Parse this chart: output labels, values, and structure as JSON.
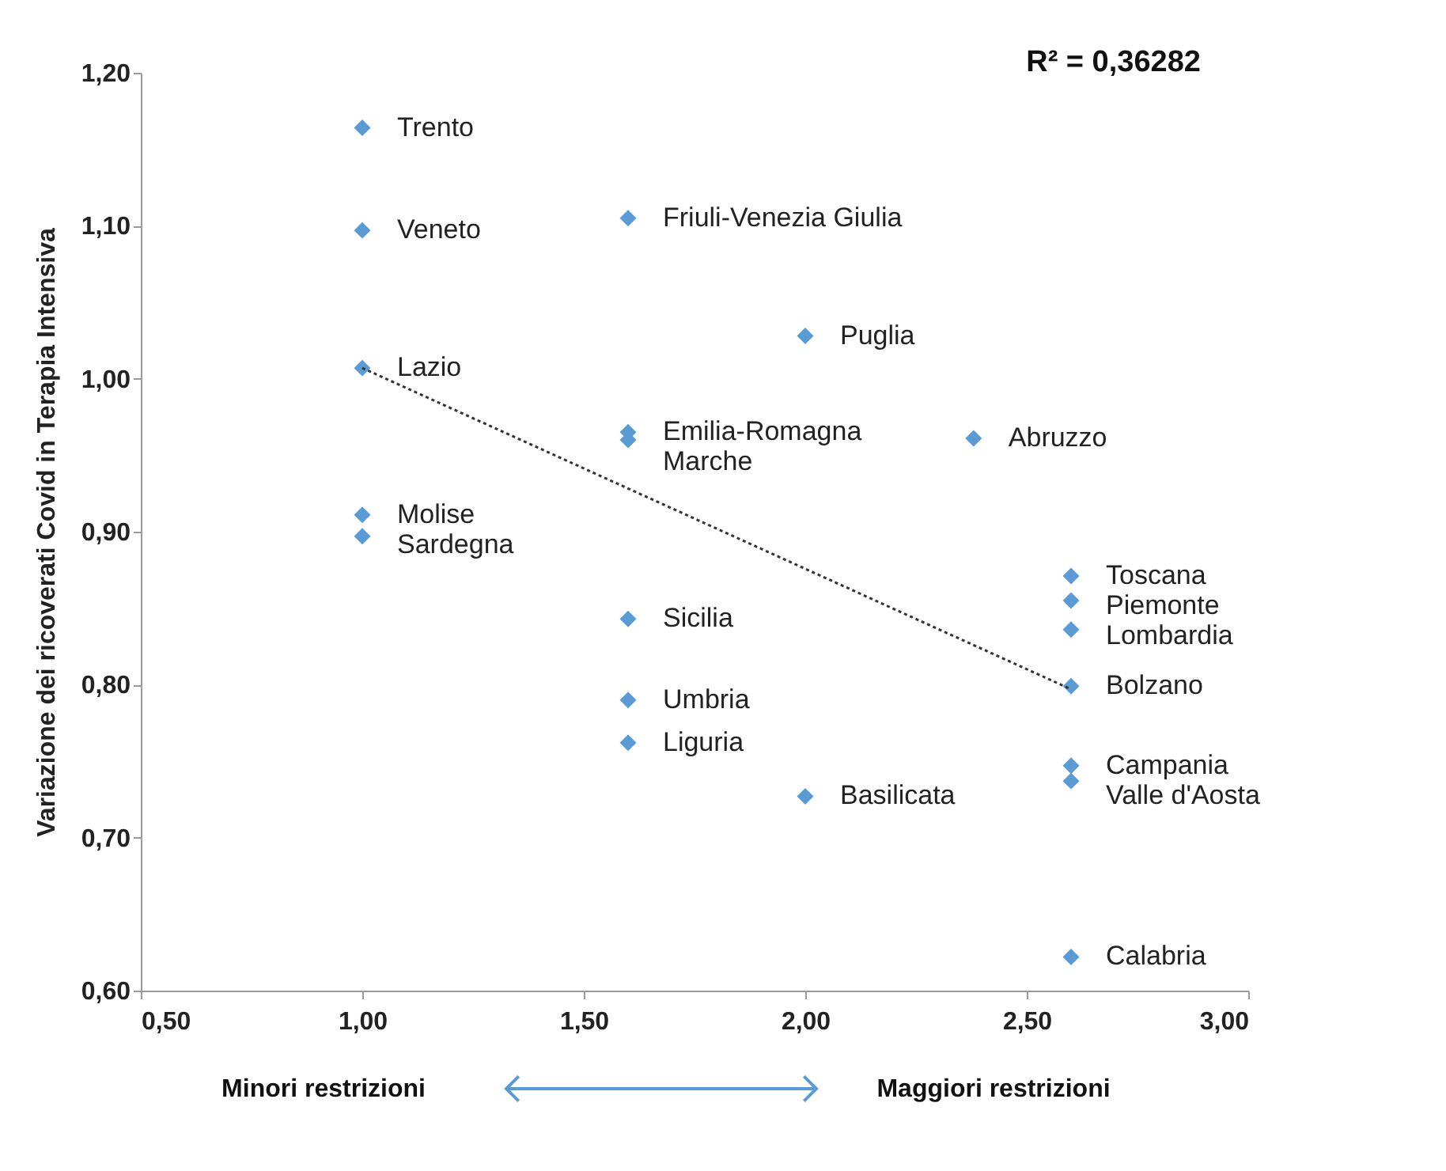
{
  "chart_data": {
    "type": "scatter",
    "ylabel": "Variazione dei ricoverati Covid in Terapia Intensiva",
    "xlim": [
      0.5,
      3.0
    ],
    "ylim": [
      0.6,
      1.2
    ],
    "xticks": [
      {
        "value": 0.5,
        "label": "0,50"
      },
      {
        "value": 1.0,
        "label": "1,00"
      },
      {
        "value": 1.5,
        "label": "1,50"
      },
      {
        "value": 2.0,
        "label": "2,00"
      },
      {
        "value": 2.5,
        "label": "2,50"
      },
      {
        "value": 3.0,
        "label": "3,00"
      }
    ],
    "yticks": [
      {
        "value": 0.6,
        "label": "0,60"
      },
      {
        "value": 0.7,
        "label": "0,70"
      },
      {
        "value": 0.8,
        "label": "0,80"
      },
      {
        "value": 0.9,
        "label": "0,90"
      },
      {
        "value": 1.0,
        "label": "1,00"
      },
      {
        "value": 1.1,
        "label": "1,10"
      },
      {
        "value": 1.2,
        "label": "1,20"
      }
    ],
    "grid": false,
    "series": [
      {
        "marker": "diamond",
        "color": "#5b9bd5",
        "x": [
          1.0,
          1.0,
          1.0,
          1.0,
          1.0,
          1.6,
          1.6,
          1.6,
          1.6,
          1.6,
          1.6,
          2.0,
          2.0,
          2.38,
          2.6,
          2.6,
          2.6,
          2.6,
          2.6,
          2.6,
          2.6
        ],
        "values": [
          1.164,
          1.097,
          1.007,
          0.911,
          0.897,
          1.105,
          0.965,
          0.96,
          0.843,
          0.79,
          0.762,
          1.028,
          0.727,
          0.961,
          0.871,
          0.855,
          0.836,
          0.799,
          0.747,
          0.737,
          0.622
        ]
      },
      {
        "type": "line",
        "color": "#333333",
        "line_style": "dotted",
        "marker": "none",
        "x": [
          1.0,
          2.6
        ],
        "values": [
          1.007,
          0.797
        ]
      }
    ],
    "annotations": [
      "R² = 0,36282",
      "Minori restrizioni",
      "Maggiori restrizioni",
      {
        "text": "Trento",
        "x": 1.0,
        "y": 1.164
      },
      {
        "text": "Veneto",
        "x": 1.0,
        "y": 1.097
      },
      {
        "text": "Lazio",
        "x": 1.0,
        "y": 1.007
      },
      {
        "text": "Molise",
        "x": 1.0,
        "y": 0.911
      },
      {
        "text": "Sardegna",
        "x": 1.0,
        "y": 0.897
      },
      {
        "text": "Friuli-Venezia Giulia",
        "x": 1.6,
        "y": 1.105
      },
      {
        "text": "Emilia-Romagna",
        "x": 1.6,
        "y": 0.965
      },
      {
        "text": "Marche",
        "x": 1.6,
        "y": 0.96
      },
      {
        "text": "Sicilia",
        "x": 1.6,
        "y": 0.843
      },
      {
        "text": "Umbria",
        "x": 1.6,
        "y": 0.79
      },
      {
        "text": "Liguria",
        "x": 1.6,
        "y": 0.762
      },
      {
        "text": "Puglia",
        "x": 2.0,
        "y": 1.028
      },
      {
        "text": "Basilicata",
        "x": 2.0,
        "y": 0.727
      },
      {
        "text": "Abruzzo",
        "x": 2.38,
        "y": 0.961
      },
      {
        "text": "Toscana",
        "x": 2.6,
        "y": 0.871
      },
      {
        "text": "Piemonte",
        "x": 2.6,
        "y": 0.855
      },
      {
        "text": "Lombardia",
        "x": 2.6,
        "y": 0.836
      },
      {
        "text": "Bolzano",
        "x": 2.6,
        "y": 0.799
      },
      {
        "text": "Campania",
        "x": 2.6,
        "y": 0.747
      },
      {
        "text": "Valle d'Aosta",
        "x": 2.6,
        "y": 0.737
      },
      {
        "text": "Calabria",
        "x": 2.6,
        "y": 0.622
      }
    ]
  }
}
